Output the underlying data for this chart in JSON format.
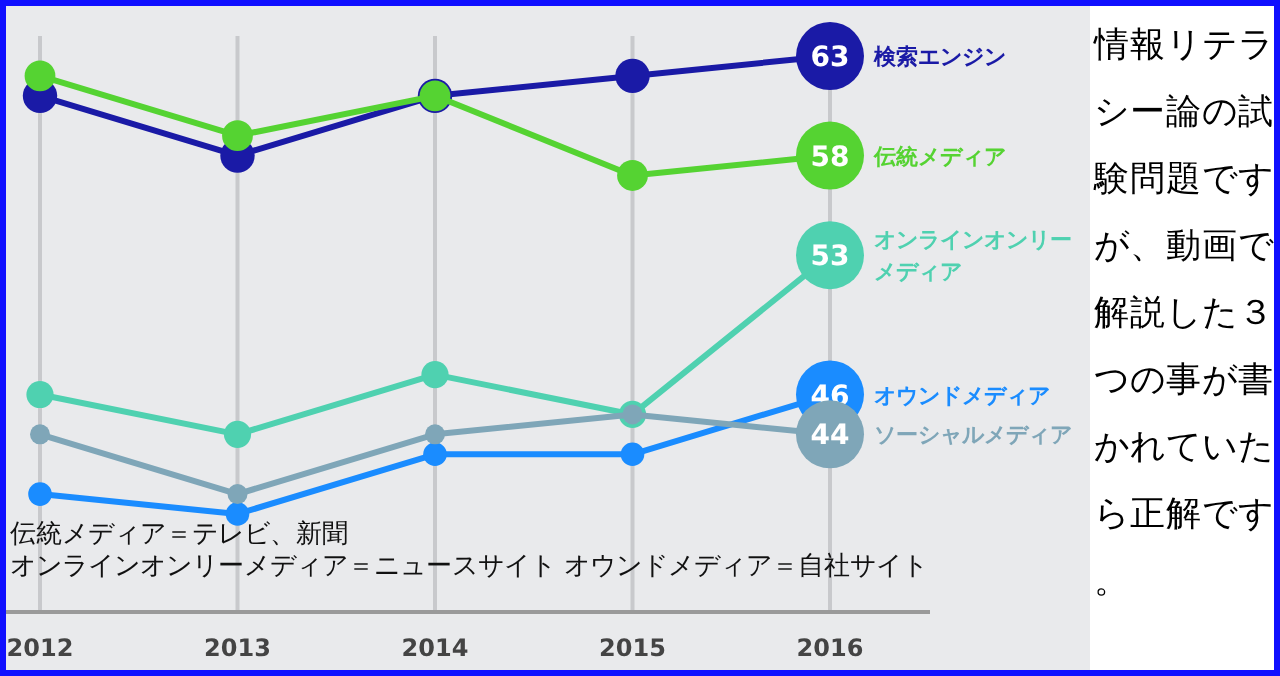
{
  "chart_data": {
    "type": "line",
    "categories": [
      "2012",
      "2013",
      "2014",
      "2015",
      "2016"
    ],
    "series": [
      {
        "name": "検索エンジン",
        "color": "#1a1aa6",
        "values": [
          61,
          58,
          61,
          62,
          63
        ],
        "value_labels": [
          null,
          null,
          null,
          null,
          "63"
        ]
      },
      {
        "name": "伝統メディア",
        "color": "#55d332",
        "values": [
          62,
          59,
          61,
          57,
          58
        ],
        "value_labels": [
          null,
          null,
          null,
          null,
          "58"
        ]
      },
      {
        "name": "オンラインオンリーメディア",
        "color": "#4fd1b0",
        "values": [
          46,
          44,
          47,
          45,
          53
        ],
        "value_labels": [
          null,
          null,
          null,
          null,
          "53"
        ]
      },
      {
        "name": "オウンドメディア",
        "color": "#1a8cff",
        "values": [
          41,
          40,
          43,
          43,
          46
        ],
        "value_labels": [
          null,
          null,
          null,
          null,
          "46"
        ]
      },
      {
        "name": "ソーシャルメディア",
        "color": "#7fa6b8",
        "values": [
          44,
          41,
          44,
          45,
          44
        ],
        "value_labels": [
          null,
          null,
          null,
          null,
          "44"
        ]
      }
    ],
    "annotations": [
      "情報リテラシー論の試験問題ですが、動画で解説した３つの事が書かれていたら正解です。",
      "伝統メディア＝テレビ、新聞",
      "オンラインオンリーメディア＝ニュースサイト オウンドメディア＝自社サイト"
    ],
    "grid": "x",
    "marker": "circle"
  }
}
